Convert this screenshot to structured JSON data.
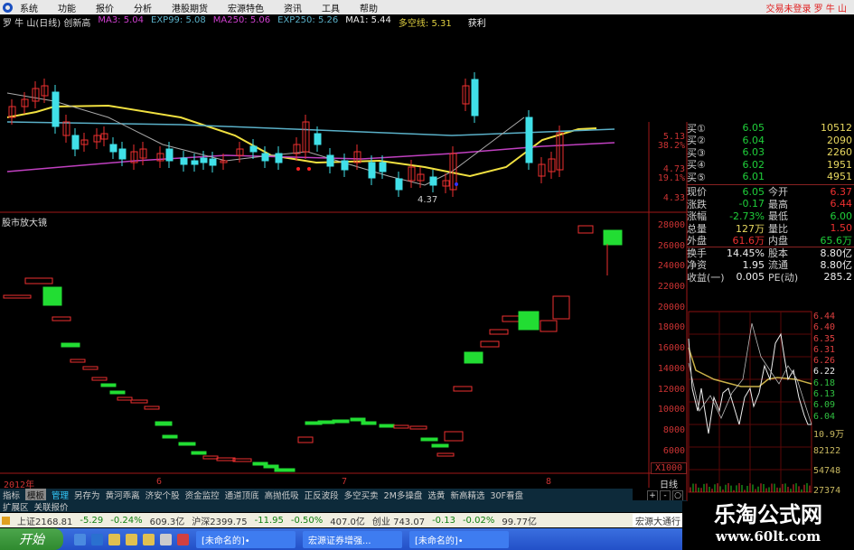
{
  "menu": {
    "items": [
      "系统",
      "功能",
      "报价",
      "分析",
      "港股期货",
      "宏源特色",
      "资讯",
      "工具",
      "帮助"
    ],
    "login": "交易未登录 罗 牛 山"
  },
  "indicator": {
    "title": "罗 牛 山(日线) 创新高",
    "ma3": "MA3: 5.04",
    "exp99": "EXP99: 5.08",
    "ma250": "MA250: 5.06",
    "exp250": "EXP250: 5.26",
    "ma1": "MA1: 5.44",
    "duokong": "多空线: 5.31",
    "extra": "获利"
  },
  "colors": {
    "up": "#ee3030",
    "down": "#40e0e8",
    "ma_yellow": "#f0e040",
    "ma_purple": "#c040c0",
    "ma_cyan": "#5ab0c8",
    "grid": "#8a1010"
  },
  "upper_axis": [
    "5.13",
    "38.2%",
    "4.73",
    "19.1%",
    "4.33"
  ],
  "low_marker": "4.37",
  "lower_panel": {
    "title": "股市放大镜",
    "axis": [
      "28000",
      "26000",
      "24000",
      "22000",
      "20000",
      "18000",
      "16000",
      "14000",
      "12000",
      "10000",
      "8000",
      "6000"
    ],
    "unit": "X1000"
  },
  "date_axis": [
    "2012年",
    "6",
    "7",
    "8"
  ],
  "period_label": "日线",
  "zoom_buttons": [
    "+",
    "-",
    "○"
  ],
  "quote": {
    "bids": [
      {
        "l": "买①",
        "p": "6.05",
        "v": "10512"
      },
      {
        "l": "买②",
        "p": "6.04",
        "v": "2090"
      },
      {
        "l": "买③",
        "p": "6.03",
        "v": "2260"
      },
      {
        "l": "买④",
        "p": "6.02",
        "v": "1951"
      },
      {
        "l": "买⑤",
        "p": "6.01",
        "v": "4951"
      }
    ],
    "stats": [
      {
        "l": "现价",
        "v": "6.05",
        "c": "g",
        "l2": "今开",
        "v2": "6.37",
        "c2": "r"
      },
      {
        "l": "涨跌",
        "v": "-0.17",
        "c": "g",
        "l2": "最高",
        "v2": "6.44",
        "c2": "r"
      },
      {
        "l": "涨幅",
        "v": "-2.73%",
        "c": "g",
        "l2": "最低",
        "v2": "6.00",
        "c2": "g"
      },
      {
        "l": "总量",
        "v": "127万",
        "c": "y",
        "l2": "量比",
        "v2": "1.50",
        "c2": "r"
      },
      {
        "l": "外盘",
        "v": "61.6万",
        "c": "r",
        "l2": "内盘",
        "v2": "65.6万",
        "c2": "g"
      },
      {
        "l": "换手",
        "v": "14.45%",
        "c": "w",
        "l2": "股本",
        "v2": "8.80亿",
        "c2": "w"
      },
      {
        "l": "净资",
        "v": "1.95",
        "c": "w",
        "l2": "流通",
        "v2": "8.80亿",
        "c2": "w"
      },
      {
        "l": "收益(一)",
        "v": "0.005",
        "c": "w",
        "l2": "PE(动)",
        "v2": "285.2",
        "c2": "w"
      }
    ]
  },
  "intraday_axis": {
    "up": [
      "6.44",
      "6.40",
      "6.35",
      "6.31",
      "6.26"
    ],
    "mid": "6.22",
    "down": [
      "6.18",
      "6.13",
      "6.09",
      "6.04"
    ],
    "vol": [
      "10.9万",
      "82122",
      "54748",
      "27374"
    ]
  },
  "tabs": [
    "指标",
    "模板",
    "管理",
    "另存为",
    "黄河乖离",
    "济安个股",
    "资金监控",
    "通道顶底",
    "高抛低吸",
    "正反波段",
    "多空买卖",
    "2M多操盘",
    "选黄",
    "新高精选",
    "30F看盘"
  ],
  "tabs2": [
    "扩展区",
    "关联报价"
  ],
  "index_bar": {
    "sh": [
      "上证2168.81",
      "-5.29",
      "-0.24%",
      "609.3亿"
    ],
    "sz": [
      "沪深2399.75",
      "-11.95",
      "-0.50%",
      "407.0亿"
    ],
    "cy": [
      "创业 743.07",
      "-0.13",
      "-0.02%",
      "99.77亿"
    ]
  },
  "taskbar": {
    "start": "开始",
    "tasks": [
      "[未命名的]•",
      "宏源证券增强...",
      "[未命名的]•"
    ],
    "right": "宏源大通行"
  },
  "watermark": {
    "title": "乐淘公式网",
    "url": "www.60lt.com"
  }
}
